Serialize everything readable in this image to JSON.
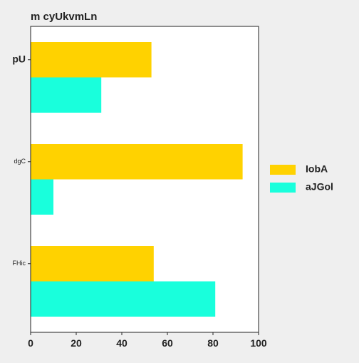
{
  "chart_data": {
    "type": "bar",
    "orientation": "horizontal",
    "title": "m cyUkvmLn",
    "xlabel": "",
    "ylabel": "",
    "categories": [
      "pU",
      "dgC",
      "FHic"
    ],
    "series": [
      {
        "name": "IobA",
        "color": "#FFD200",
        "values": [
          53,
          93,
          54
        ]
      },
      {
        "name": "aJGol",
        "color": "#19FFDC",
        "values": [
          31,
          10,
          81
        ]
      }
    ],
    "xlim": [
      0,
      100
    ],
    "xticks": [
      0,
      20,
      40,
      60,
      80,
      100
    ],
    "grid": false,
    "legend_position": "right"
  }
}
